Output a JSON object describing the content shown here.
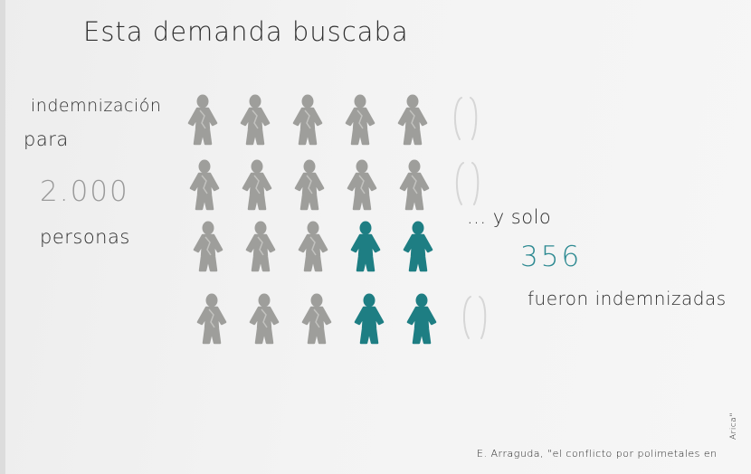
{
  "title": "Esta demanda buscaba",
  "left_text": {
    "line1": "indemnización",
    "line2": "para",
    "number": "2.000",
    "line4": "personas"
  },
  "right_text": {
    "line1": "... y solo",
    "number": "356",
    "line3": "fueron indemnizadas"
  },
  "source": {
    "text": "E. Arraguda, \"el conflicto por polimetales en",
    "rotated_tail": "Arica\""
  },
  "pictogram": {
    "rows": [
      [
        "gray",
        "gray",
        "gray",
        "gray",
        "gray",
        "outline"
      ],
      [
        "gray",
        "gray",
        "gray",
        "gray",
        "gray",
        "outline"
      ],
      [
        "gray",
        "gray",
        "gray",
        "teal",
        "teal"
      ],
      [
        "gray",
        "gray",
        "gray",
        "teal",
        "teal",
        "outline"
      ]
    ],
    "colors": {
      "gray": "#9e9e9b",
      "teal": "#1e7e83",
      "outline": "#d6d6d6"
    }
  }
}
